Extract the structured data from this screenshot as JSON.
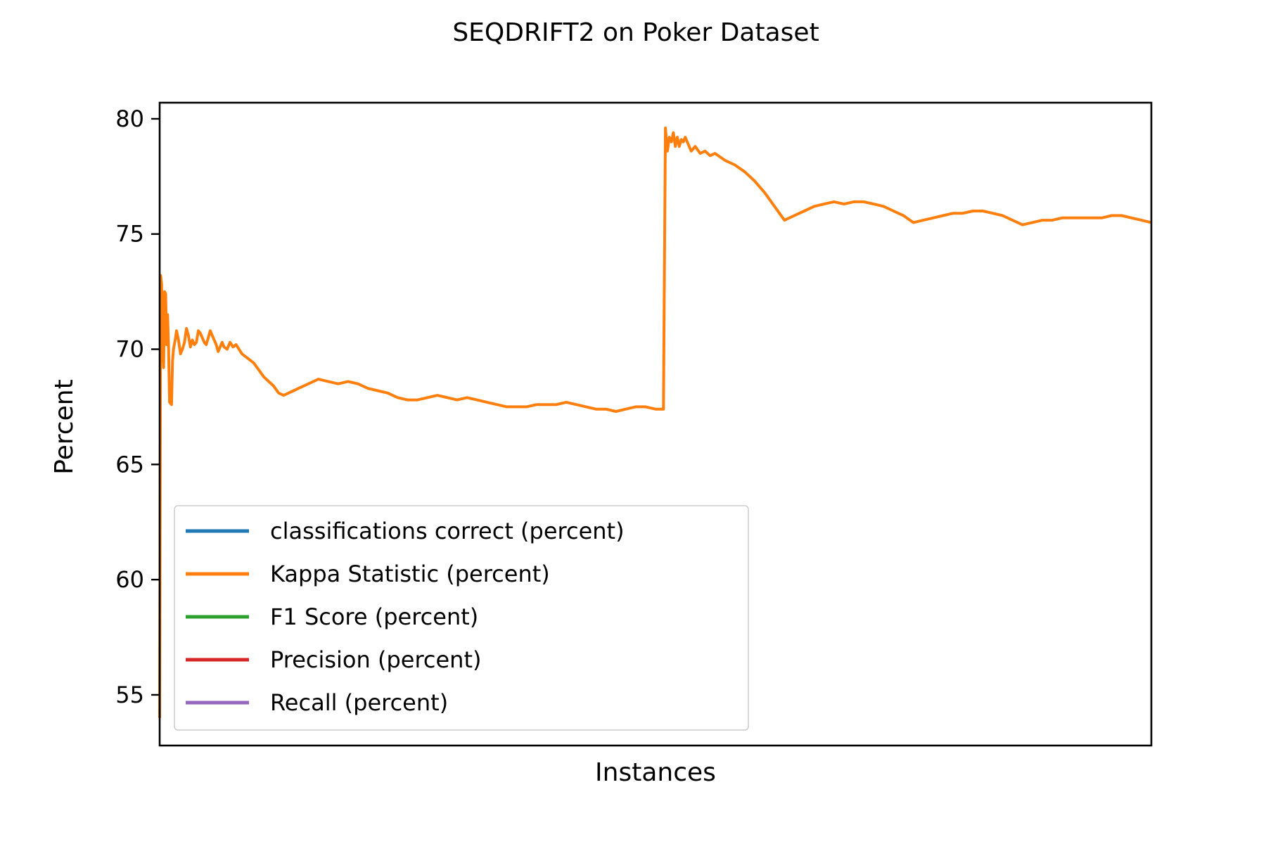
{
  "chart_data": {
    "type": "line",
    "title": "SEQDRIFT2 on Poker Dataset",
    "xlabel": "Instances",
    "ylabel": "Percent",
    "x_ticks_shown": false,
    "ylim": [
      52.8,
      80.7
    ],
    "yticks": [
      55,
      60,
      65,
      70,
      75,
      80
    ],
    "grid": false,
    "legend_position": "lower-left",
    "series": [
      {
        "name": "classifications correct (percent)",
        "color": "#1f77b4",
        "x": [],
        "y": []
      },
      {
        "name": "Kappa Statistic (percent)",
        "color": "#ff7f0e",
        "x": [
          0,
          0.001,
          0.002,
          0.003,
          0.004,
          0.005,
          0.006,
          0.007,
          0.008,
          0.009,
          0.01,
          0.012,
          0.013,
          0.014,
          0.016,
          0.017,
          0.019,
          0.021,
          0.023,
          0.025,
          0.027,
          0.029,
          0.031,
          0.033,
          0.035,
          0.037,
          0.039,
          0.041,
          0.043,
          0.045,
          0.047,
          0.049,
          0.051,
          0.053,
          0.055,
          0.057,
          0.059,
          0.061,
          0.063,
          0.065,
          0.068,
          0.071,
          0.074,
          0.077,
          0.08,
          0.083,
          0.086,
          0.089,
          0.092,
          0.095,
          0.1,
          0.105,
          0.11,
          0.115,
          0.12,
          0.125,
          0.13,
          0.135,
          0.14,
          0.145,
          0.15,
          0.155,
          0.16,
          0.17,
          0.18,
          0.19,
          0.2,
          0.21,
          0.22,
          0.23,
          0.24,
          0.25,
          0.26,
          0.27,
          0.28,
          0.29,
          0.3,
          0.31,
          0.32,
          0.33,
          0.34,
          0.35,
          0.36,
          0.37,
          0.38,
          0.39,
          0.4,
          0.41,
          0.42,
          0.43,
          0.44,
          0.45,
          0.46,
          0.47,
          0.48,
          0.49,
          0.5,
          0.505,
          0.508,
          0.51,
          0.512,
          0.514,
          0.516,
          0.518,
          0.52,
          0.522,
          0.524,
          0.526,
          0.528,
          0.53,
          0.533,
          0.536,
          0.54,
          0.545,
          0.55,
          0.555,
          0.56,
          0.57,
          0.58,
          0.59,
          0.6,
          0.61,
          0.62,
          0.63,
          0.64,
          0.65,
          0.66,
          0.67,
          0.68,
          0.69,
          0.7,
          0.71,
          0.72,
          0.73,
          0.74,
          0.75,
          0.76,
          0.77,
          0.78,
          0.79,
          0.8,
          0.81,
          0.82,
          0.83,
          0.84,
          0.85,
          0.86,
          0.87,
          0.88,
          0.89,
          0.9,
          0.91,
          0.92,
          0.93,
          0.94,
          0.95,
          0.96,
          0.97,
          0.98,
          0.99,
          1.0
        ],
        "y": [
          54.0,
          73.2,
          72.8,
          70.0,
          69.2,
          72.5,
          72.4,
          70.2,
          71.5,
          70.0,
          67.7,
          67.6,
          69.5,
          70.0,
          70.5,
          70.8,
          70.4,
          69.8,
          70.0,
          70.3,
          70.9,
          70.6,
          70.1,
          70.4,
          70.2,
          70.3,
          70.8,
          70.7,
          70.5,
          70.3,
          70.2,
          70.5,
          70.8,
          70.6,
          70.4,
          70.2,
          69.9,
          70.1,
          70.3,
          70.1,
          70.0,
          70.3,
          70.1,
          70.2,
          70.0,
          69.8,
          69.7,
          69.6,
          69.5,
          69.4,
          69.1,
          68.8,
          68.6,
          68.4,
          68.1,
          68.0,
          68.1,
          68.2,
          68.3,
          68.4,
          68.5,
          68.6,
          68.7,
          68.6,
          68.5,
          68.6,
          68.5,
          68.3,
          68.2,
          68.1,
          67.9,
          67.8,
          67.8,
          67.9,
          68.0,
          67.9,
          67.8,
          67.9,
          67.8,
          67.7,
          67.6,
          67.5,
          67.5,
          67.5,
          67.6,
          67.6,
          67.6,
          67.7,
          67.6,
          67.5,
          67.4,
          67.4,
          67.3,
          67.4,
          67.5,
          67.5,
          67.4,
          67.4,
          67.4,
          79.6,
          78.6,
          79.2,
          79.0,
          79.4,
          78.8,
          79.2,
          78.8,
          79.1,
          79.0,
          79.2,
          78.9,
          78.6,
          78.8,
          78.5,
          78.6,
          78.4,
          78.5,
          78.2,
          78.0,
          77.7,
          77.3,
          76.8,
          76.2,
          75.6,
          75.8,
          76.0,
          76.2,
          76.3,
          76.4,
          76.3,
          76.4,
          76.4,
          76.3,
          76.2,
          76.0,
          75.8,
          75.5,
          75.6,
          75.7,
          75.8,
          75.9,
          75.9,
          76.0,
          76.0,
          75.9,
          75.8,
          75.6,
          75.4,
          75.5,
          75.6,
          75.6,
          75.7,
          75.7,
          75.7,
          75.7,
          75.7,
          75.8,
          75.8,
          75.7,
          75.6,
          75.5
        ]
      },
      {
        "name": "F1 Score (percent)",
        "color": "#2ca02c",
        "x": [],
        "y": []
      },
      {
        "name": "Precision (percent)",
        "color": "#d62728",
        "x": [],
        "y": []
      },
      {
        "name": "Recall (percent)",
        "color": "#9467bd",
        "x": [],
        "y": []
      }
    ]
  }
}
